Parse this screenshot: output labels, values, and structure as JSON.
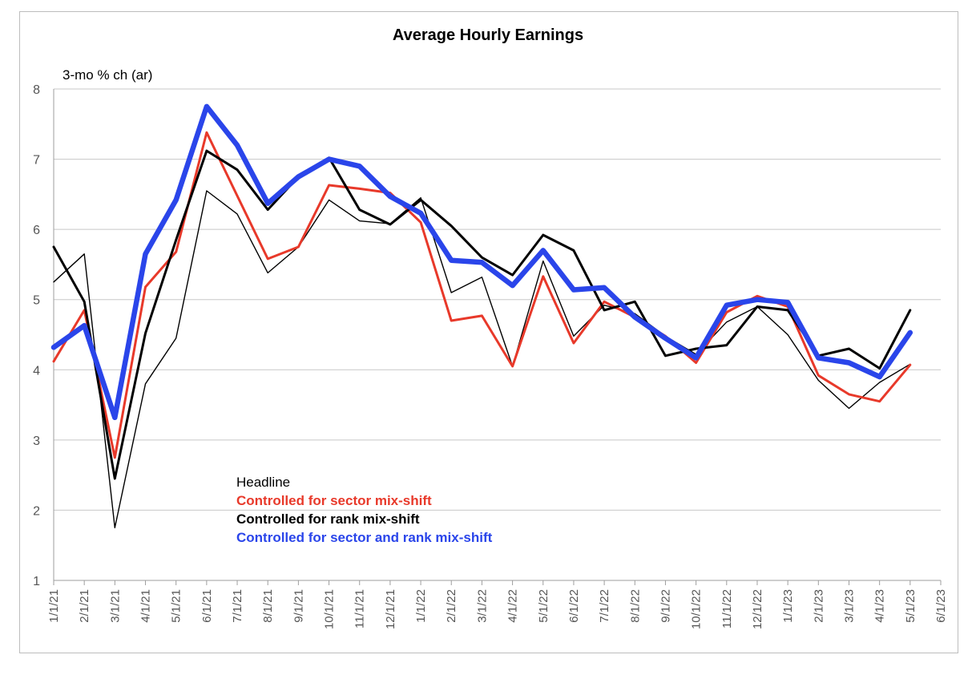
{
  "chart_data": {
    "type": "line",
    "title": "Average Hourly Earnings",
    "ylabel": "3-mo % ch (ar)",
    "xlabel": "",
    "ylim": [
      1,
      8
    ],
    "yticks": [
      "1",
      "2",
      "3",
      "4",
      "5",
      "6",
      "7",
      "8"
    ],
    "categories": [
      "1/1/21",
      "2/1/21",
      "3/1/21",
      "4/1/21",
      "5/1/21",
      "6/1/21",
      "7/1/21",
      "8/1/21",
      "9/1/21",
      "10/1/21",
      "11/1/21",
      "12/1/21",
      "1/1/22",
      "2/1/22",
      "3/1/22",
      "4/1/22",
      "5/1/22",
      "6/1/22",
      "7/1/22",
      "8/1/22",
      "9/1/22",
      "10/1/22",
      "11/1/22",
      "12/1/22",
      "1/1/23",
      "2/1/23",
      "3/1/23",
      "4/1/23",
      "5/1/23",
      "6/1/23"
    ],
    "grid": true,
    "legend_position": "lower-left",
    "series": [
      {
        "name": "Headline",
        "color": "#000000",
        "weight": "thin",
        "values": [
          5.25,
          5.65,
          1.75,
          3.8,
          4.45,
          6.55,
          6.22,
          5.38,
          5.75,
          6.42,
          6.12,
          6.08,
          6.45,
          5.1,
          5.32,
          4.05,
          5.55,
          4.48,
          4.92,
          4.8,
          4.48,
          4.22,
          4.68,
          4.9,
          4.5,
          3.85,
          3.45,
          3.82,
          4.08,
          null
        ]
      },
      {
        "name": "Controlled for sector mix-shift",
        "color": "#e8392a",
        "weight": "medium",
        "values": [
          4.12,
          4.85,
          2.75,
          5.18,
          5.68,
          7.38,
          6.48,
          5.58,
          5.75,
          6.63,
          6.58,
          6.52,
          6.1,
          4.7,
          4.77,
          4.05,
          5.33,
          4.38,
          4.97,
          4.75,
          4.48,
          4.1,
          4.82,
          5.05,
          4.9,
          3.92,
          3.65,
          3.55,
          4.07,
          null
        ]
      },
      {
        "name": "Controlled for rank mix-shift",
        "color": "#000000",
        "weight": "medium",
        "values": [
          5.75,
          4.97,
          2.45,
          4.52,
          5.85,
          7.12,
          6.85,
          6.28,
          6.75,
          7.02,
          6.28,
          6.07,
          6.42,
          6.05,
          5.6,
          5.35,
          5.92,
          5.7,
          4.85,
          4.97,
          4.2,
          4.3,
          4.35,
          4.9,
          4.85,
          4.2,
          4.3,
          4.02,
          4.85,
          null
        ]
      },
      {
        "name": "Controlled for sector and rank mix-shift",
        "color": "#2a45ea",
        "weight": "thick",
        "values": [
          4.32,
          4.63,
          3.32,
          5.65,
          6.42,
          7.75,
          7.2,
          6.37,
          6.75,
          7.0,
          6.9,
          6.47,
          6.23,
          5.56,
          5.53,
          5.2,
          5.7,
          5.14,
          5.17,
          4.75,
          4.45,
          4.17,
          4.92,
          5.0,
          4.96,
          4.17,
          4.1,
          3.9,
          4.53,
          null
        ]
      }
    ]
  }
}
